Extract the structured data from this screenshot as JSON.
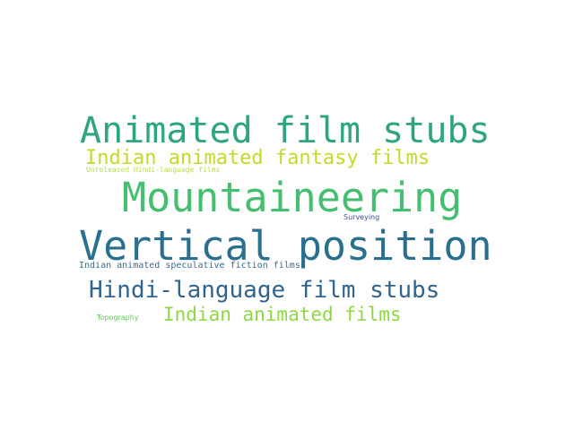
{
  "word_cloud": {
    "words": [
      {
        "text": "Animated film stubs",
        "color": "#2ea67d"
      },
      {
        "text": "Indian animated fantasy films",
        "color": "#c5d92b"
      },
      {
        "text": "Unreleased Hindi-language films",
        "color": "#b9de4a"
      },
      {
        "text": "Mountaineering",
        "color": "#45bf6f"
      },
      {
        "text": "Surveying",
        "color": "#3e4a89"
      },
      {
        "text": "Vertical position",
        "color": "#2a6f8e"
      },
      {
        "text": "Indian animated speculative fiction films",
        "color": "#346e8b"
      },
      {
        "text": "Hindi-language film stubs",
        "color": "#30648d"
      },
      {
        "text": "Topography",
        "color": "#62c85a"
      },
      {
        "text": "Indian animated films",
        "color": "#8fd744"
      }
    ]
  }
}
